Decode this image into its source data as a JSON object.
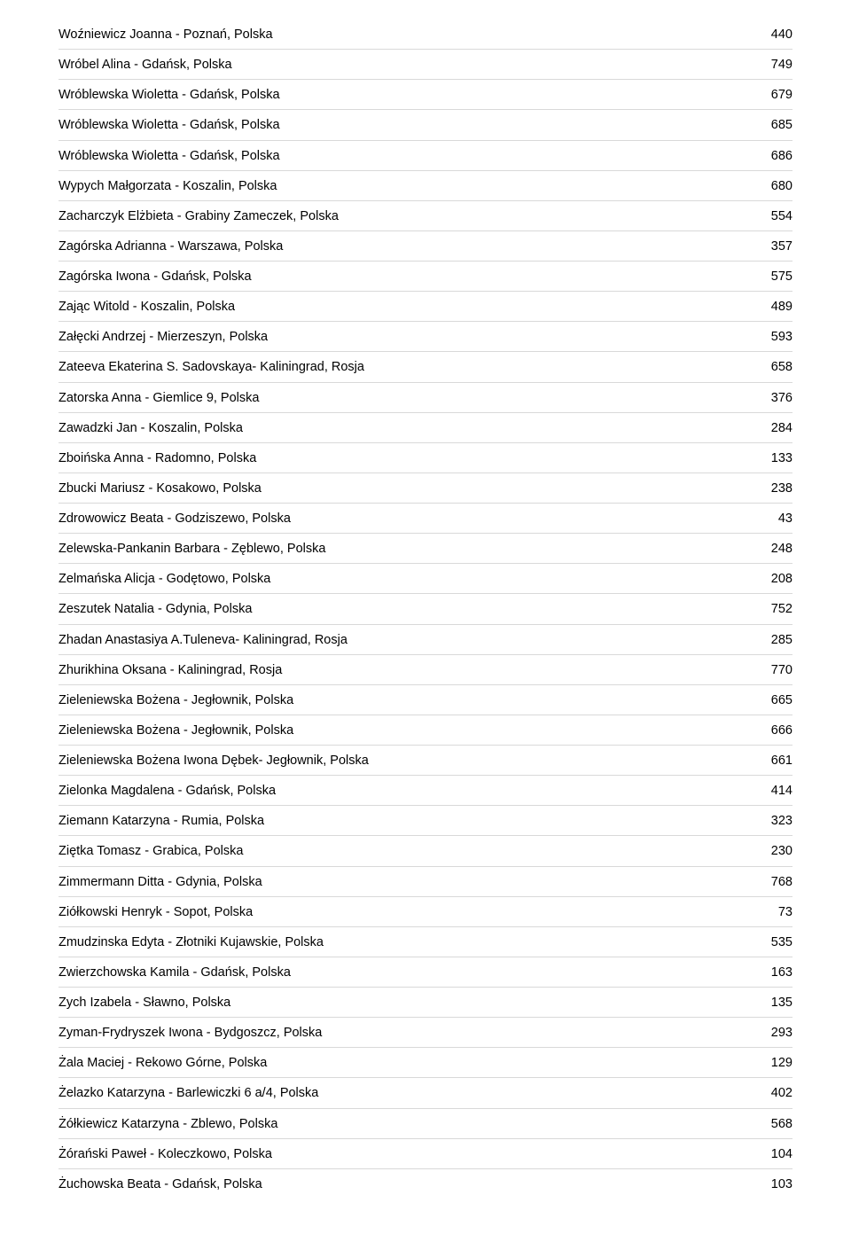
{
  "rows": [
    {
      "name": "Woźniewicz Joanna - Poznań, Polska",
      "num": "440"
    },
    {
      "name": "Wróbel Alina - Gdańsk, Polska",
      "num": "749"
    },
    {
      "name": "Wróblewska Wioletta - Gdańsk, Polska",
      "num": "679"
    },
    {
      "name": "Wróblewska Wioletta - Gdańsk, Polska",
      "num": "685"
    },
    {
      "name": "Wróblewska Wioletta - Gdańsk, Polska",
      "num": "686"
    },
    {
      "name": "Wypych Małgorzata - Koszalin, Polska",
      "num": "680"
    },
    {
      "name": "Zacharczyk Elżbieta - Grabiny Zameczek, Polska",
      "num": "554"
    },
    {
      "name": "Zagórska Adrianna - Warszawa, Polska",
      "num": "357"
    },
    {
      "name": "Zagórska Iwona - Gdańsk, Polska",
      "num": "575"
    },
    {
      "name": "Zając Witold - Koszalin, Polska",
      "num": "489"
    },
    {
      "name": "Załęcki Andrzej - Mierzeszyn, Polska",
      "num": "593"
    },
    {
      "name": "Zateeva Ekaterina S. Sadovskaya- Kaliningrad, Rosja",
      "num": "658"
    },
    {
      "name": "Zatorska Anna - Giemlice  9, Polska",
      "num": "376"
    },
    {
      "name": "Zawadzki Jan - Koszalin, Polska",
      "num": "284"
    },
    {
      "name": "Zboińska Anna - Radomno, Polska",
      "num": "133"
    },
    {
      "name": "Zbucki Mariusz - Kosakowo, Polska",
      "num": "238"
    },
    {
      "name": "Zdrowowicz Beata - Godziszewo, Polska",
      "num": "43"
    },
    {
      "name": "Zelewska-Pankanin Barbara - Zęblewo, Polska",
      "num": "248"
    },
    {
      "name": "Zelmańska Alicja - Godętowo, Polska",
      "num": "208"
    },
    {
      "name": "Zeszutek Natalia - Gdynia, Polska",
      "num": "752"
    },
    {
      "name": "Zhadan Anastasiya A.Tuleneva- Kaliningrad, Rosja",
      "num": "285"
    },
    {
      "name": "Zhurikhina Oksana - Kaliningrad, Rosja",
      "num": "770"
    },
    {
      "name": "Zieleniewska Bożena - Jegłownik, Polska",
      "num": "665"
    },
    {
      "name": "Zieleniewska Bożena - Jegłownik, Polska",
      "num": "666"
    },
    {
      "name": "Zieleniewska Bożena Iwona Dębek- Jegłownik, Polska",
      "num": "661"
    },
    {
      "name": "Zielonka Magdalena - Gdańsk, Polska",
      "num": "414"
    },
    {
      "name": "Ziemann Katarzyna - Rumia, Polska",
      "num": "323"
    },
    {
      "name": "Ziętka Tomasz - Grabica, Polska",
      "num": "230"
    },
    {
      "name": "Zimmermann Ditta - Gdynia, Polska",
      "num": "768"
    },
    {
      "name": "Ziółkowski Henryk - Sopot, Polska",
      "num": "73"
    },
    {
      "name": "Zmudzinska Edyta - Złotniki Kujawskie, Polska",
      "num": "535"
    },
    {
      "name": "Zwierzchowska Kamila - Gdańsk, Polska",
      "num": "163"
    },
    {
      "name": "Zych Izabela - Sławno, Polska",
      "num": "135"
    },
    {
      "name": "Zyman-Frydryszek Iwona - Bydgoszcz, Polska",
      "num": "293"
    },
    {
      "name": "Żala Maciej - Rekowo Górne, Polska",
      "num": "129"
    },
    {
      "name": "Żelazko Katarzyna - Barlewiczki 6 a/4, Polska",
      "num": "402"
    },
    {
      "name": "Żółkiewicz Katarzyna - Zblewo, Polska",
      "num": "568"
    },
    {
      "name": "Żórański Paweł - Koleczkowo, Polska",
      "num": "104"
    },
    {
      "name": "Żuchowska Beata - Gdańsk, Polska",
      "num": "103"
    }
  ]
}
